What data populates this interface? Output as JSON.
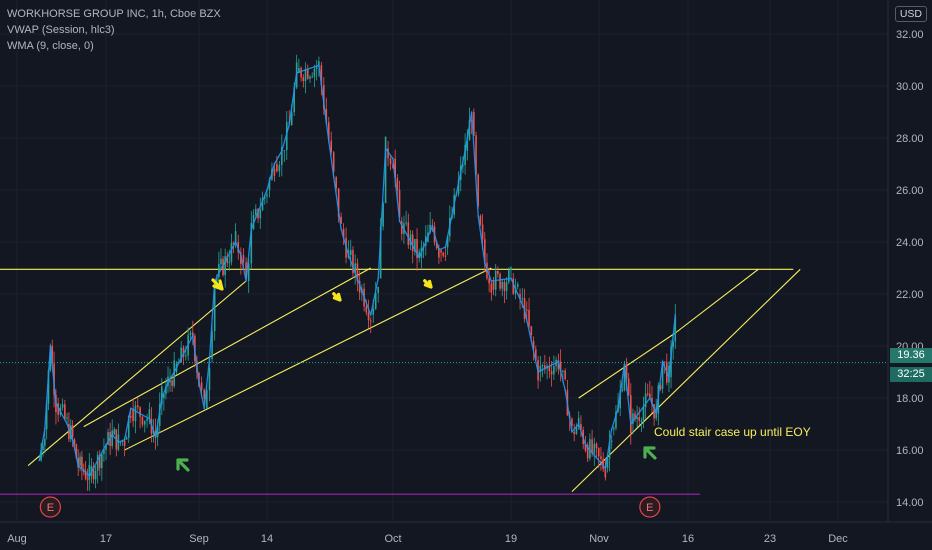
{
  "header": {
    "symbol_line": "WORKHORSE GROUP INC, 1h, Cboe BZX",
    "indicator_vwap": "VWAP (Session, hlc3)",
    "indicator_wma": "WMA (9, close, 0)",
    "currency_button": "USD"
  },
  "price_tags": {
    "last_price": "19.36",
    "countdown": "32:25"
  },
  "annotation": "Could stair case up until EOY",
  "earnings_label": "E",
  "colors": {
    "background": "#131722",
    "grid": "#1e2230",
    "candle_up": "#26a69a",
    "candle_down": "#ef5350",
    "vwap": "#2196f3",
    "trendline": "#f7f05c",
    "support_line": "#9c27b0",
    "arrow_yellow": "#f5e61c",
    "arrow_green": "#4caf50",
    "earnings": "#e04646",
    "price_tag": "#1e6b62"
  },
  "chart_data": {
    "type": "line",
    "title": "WORKHORSE GROUP INC, 1h, Cboe BZX",
    "x_ticks": [
      "Aug",
      "17",
      "Sep",
      "14",
      "Oct",
      "19",
      "Nov",
      "16",
      "23",
      "Dec"
    ],
    "y_ticks": [
      "14.00",
      "16.00",
      "18.00",
      "20.00",
      "22.00",
      "24.00",
      "26.00",
      "28.00",
      "30.00",
      "32.00"
    ],
    "ylim": [
      13.3,
      32.3
    ],
    "grid": true,
    "series": [
      {
        "name": "price",
        "points": [
          [
            "Aug 5",
            15.6
          ],
          [
            "Aug 6",
            16.8
          ],
          [
            "Aug 7",
            20.0
          ],
          [
            "Aug 8",
            17.8
          ],
          [
            "Aug 10",
            17.0
          ],
          [
            "Aug 11",
            16.4
          ],
          [
            "Aug 12",
            15.4
          ],
          [
            "Aug 13",
            15.2
          ],
          [
            "Aug 14",
            15.0
          ],
          [
            "Aug 17",
            16.2
          ],
          [
            "Aug 18",
            16.6
          ],
          [
            "Aug 19",
            16.3
          ],
          [
            "Aug 20",
            16.4
          ],
          [
            "Aug 21",
            17.6
          ],
          [
            "Aug 24",
            17.2
          ],
          [
            "Aug 25",
            16.5
          ],
          [
            "Aug 26",
            18.0
          ],
          [
            "Aug 27",
            18.6
          ],
          [
            "Aug 28",
            19.0
          ],
          [
            "Aug 31",
            20.4
          ],
          [
            "Sep 1",
            18.6
          ],
          [
            "Sep 2",
            17.6
          ],
          [
            "Sep 3",
            19.5
          ],
          [
            "Sep 4",
            22.5
          ],
          [
            "Sep 8",
            24.0
          ],
          [
            "Sep 9",
            23.5
          ],
          [
            "Sep 10",
            22.5
          ],
          [
            "Sep 11",
            24.5
          ],
          [
            "Sep 14",
            26.0
          ],
          [
            "Sep 15",
            27.0
          ],
          [
            "Sep 16",
            27.5
          ],
          [
            "Sep 17",
            28.5
          ],
          [
            "Sep 18",
            30.5
          ],
          [
            "Sep 21",
            30.8
          ],
          [
            "Sep 22",
            28.6
          ],
          [
            "Sep 23",
            26.5
          ],
          [
            "Sep 24",
            24.5
          ],
          [
            "Sep 25",
            23.5
          ],
          [
            "Sep 28",
            21.2
          ],
          [
            "Sep 29",
            22.6
          ],
          [
            "Sep 30",
            27.6
          ],
          [
            "Oct 1",
            27.2
          ],
          [
            "Oct 2",
            24.8
          ],
          [
            "Oct 5",
            23.4
          ],
          [
            "Oct 6",
            24.0
          ],
          [
            "Oct 7",
            24.6
          ],
          [
            "Oct 8",
            23.7
          ],
          [
            "Oct 9",
            23.8
          ],
          [
            "Oct 12",
            27.5
          ],
          [
            "Oct 13",
            29.0
          ],
          [
            "Oct 14",
            25.0
          ],
          [
            "Oct 15",
            23.2
          ],
          [
            "Oct 16",
            22.5
          ],
          [
            "Oct 19",
            22.6
          ],
          [
            "Oct 20",
            22.0
          ],
          [
            "Oct 21",
            21.4
          ],
          [
            "Oct 22",
            20.2
          ],
          [
            "Oct 23",
            19.0
          ],
          [
            "Oct 26",
            19.4
          ],
          [
            "Oct 27",
            18.3
          ],
          [
            "Oct 28",
            16.7
          ],
          [
            "Oct 29",
            17.0
          ],
          [
            "Oct 30",
            16.2
          ],
          [
            "Nov 2",
            15.3
          ],
          [
            "Nov 3",
            16.8
          ],
          [
            "Nov 4",
            17.6
          ],
          [
            "Nov 5",
            19.3
          ],
          [
            "Nov 6",
            17.0
          ],
          [
            "Nov 9",
            18.0
          ],
          [
            "Nov 10",
            17.4
          ],
          [
            "Nov 11",
            19.4
          ],
          [
            "Nov 12",
            18.8
          ],
          [
            "Nov 13",
            21.2
          ],
          [
            "Nov 13 close",
            19.36
          ]
        ]
      }
    ],
    "horizontal_lines": [
      {
        "name": "resistance",
        "y": 22.95,
        "color": "#f7f05c"
      },
      {
        "name": "support",
        "y": 14.3,
        "color": "#9c27b0"
      }
    ],
    "trendlines": [
      {
        "from": [
          "Aug 3",
          15.4
        ],
        "to": [
          "Sep 10",
          22.5
        ]
      },
      {
        "from": [
          "Aug 13",
          16.9
        ],
        "to": [
          "Sep 28",
          23.0
        ]
      },
      {
        "from": [
          "Aug 20",
          16.0
        ],
        "to": [
          "Oct 16",
          23.0
        ]
      },
      {
        "from": [
          "Oct 29",
          18.0
        ],
        "to": [
          "Nov 13",
          20.5
        ]
      },
      {
        "from": [
          "Oct 28",
          14.4
        ],
        "to": [
          "Nov 26",
          22.95
        ]
      },
      {
        "from": [
          "Nov 13",
          20.5
        ],
        "to": [
          "Nov 21",
          22.95
        ]
      }
    ],
    "annotations": [
      "Could stair case up until EOY"
    ],
    "earnings_markers": [
      "Aug 7",
      "Nov 9"
    ]
  }
}
